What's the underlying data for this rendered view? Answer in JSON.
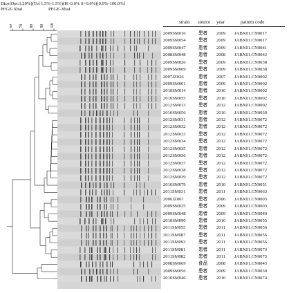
{
  "header": {
    "line1": "Dice(Opt:1.20%)(Tol 1.5%-1.5%)(H>0.0% S>0.0%)[0.0%-100.0%]",
    "line2_left": "PFGE-XbaI",
    "line2_right": "PFGE-XbaI"
  },
  "scale": {
    "ticks": [
      "60",
      "70",
      "80",
      "90",
      "100"
    ]
  },
  "columns": {
    "strain": "strain",
    "source": "source",
    "year": "year",
    "pattern": "pattern code"
  },
  "rows": [
    {
      "strain": "2009SM016",
      "source": "患者",
      "year": "2009",
      "pattern": "JABX01.CN0017"
    },
    {
      "strain": "2009SM054",
      "source": "患者",
      "year": "2009",
      "pattern": "JABX01.CN0017"
    },
    {
      "strain": "2009SM047",
      "source": "患者",
      "year": "2009",
      "pattern": "JABX01.CN0041"
    },
    {
      "strain": "2008SM048",
      "source": "患者",
      "year": "2008",
      "pattern": "JABX01.CN0042"
    },
    {
      "strain": "2009SM026",
      "source": "患者",
      "year": "2009",
      "pattern": "JABX01.CN0038"
    },
    {
      "strain": "2009SM069",
      "source": "患者",
      "year": "2009",
      "pattern": "JABX01.CN0038"
    },
    {
      "strain": "2007JZ026",
      "source": "患者",
      "year": "2007",
      "pattern": "JABX01.CN0002"
    },
    {
      "strain": "2009SM001",
      "source": "患者",
      "year": "2009",
      "pattern": "JABX01.CN0002"
    },
    {
      "strain": "2010SM014",
      "source": "患者",
      "year": "2010",
      "pattern": "JABX01.CN0002"
    },
    {
      "strain": "2010SM055",
      "source": "患者",
      "year": "2010",
      "pattern": "JABX01.CN0002"
    },
    {
      "strain": "2012SM013",
      "source": "患者",
      "year": "2012",
      "pattern": "JABX01.CN0002"
    },
    {
      "strain": "2010SM056",
      "source": "患者",
      "year": "2010",
      "pattern": "JABX01.CN0039"
    },
    {
      "strain": "2012SM031",
      "source": "患者",
      "year": "2012",
      "pattern": "JABX01.CN0072"
    },
    {
      "strain": "2012SM032",
      "source": "患者",
      "year": "2012",
      "pattern": "JABX01.CN0072"
    },
    {
      "strain": "2012SM033",
      "source": "患者",
      "year": "2012",
      "pattern": "JABX01.CN0072"
    },
    {
      "strain": "2012SM034",
      "source": "患者",
      "year": "2012",
      "pattern": "JABX01.CN0072"
    },
    {
      "strain": "2012SM035",
      "source": "患者",
      "year": "2012",
      "pattern": "JABX01.CN0072"
    },
    {
      "strain": "2012SM036",
      "source": "患者",
      "year": "2012",
      "pattern": "JABX01.CN0072"
    },
    {
      "strain": "2012SM037",
      "source": "患者",
      "year": "2012",
      "pattern": "JABX01.CN0072"
    },
    {
      "strain": "2012SM038",
      "source": "患者",
      "year": "2012",
      "pattern": "JABX01.CN0072"
    },
    {
      "strain": "2012SM039",
      "source": "患者",
      "year": "2012",
      "pattern": "JABX01.CN0072"
    },
    {
      "strain": "2010SM079",
      "source": "患者",
      "year": "2010",
      "pattern": "JABX01.CN0051"
    },
    {
      "strain": "2011SM031",
      "source": "患者",
      "year": "2011",
      "pattern": "JABX01.CN0063"
    },
    {
      "strain": "2006JZ001",
      "source": "患者",
      "year": "2006",
      "pattern": "JABX01.CN0003"
    },
    {
      "strain": "2009SM025",
      "source": "患者",
      "year": "2009",
      "pattern": "JABX01.CN0003"
    },
    {
      "strain": "2009SM048",
      "source": "患者",
      "year": "2009",
      "pattern": "JABX01.CN0040"
    },
    {
      "strain": "2010SM090",
      "source": "患者",
      "year": "2010",
      "pattern": "JABX01.CN0055"
    },
    {
      "strain": "2011SM055",
      "source": "患者",
      "year": "2011",
      "pattern": "JABX01.CN0056"
    },
    {
      "strain": "2011SM087",
      "source": "患者",
      "year": "2011",
      "pattern": "JABX01.CN0056"
    },
    {
      "strain": "2011SM093",
      "source": "患者",
      "year": "2011",
      "pattern": "JABX01.CN0056"
    },
    {
      "strain": "2011SM081",
      "source": "患者",
      "year": "2011",
      "pattern": "JABX01.CN0073"
    },
    {
      "strain": "2011SM082",
      "source": "患者",
      "year": "2011",
      "pattern": "JABX01.CN0073"
    },
    {
      "strain": "2008SM069",
      "source": "食品",
      "year": "2008",
      "pattern": "JABX01.CN0043"
    },
    {
      "strain": "2009SM056",
      "source": "患者",
      "year": "2009",
      "pattern": "JABX01.CN0039"
    },
    {
      "strain": "2010SM046",
      "source": "患者",
      "year": "2010",
      "pattern": "JABX01.CN0074"
    }
  ]
}
